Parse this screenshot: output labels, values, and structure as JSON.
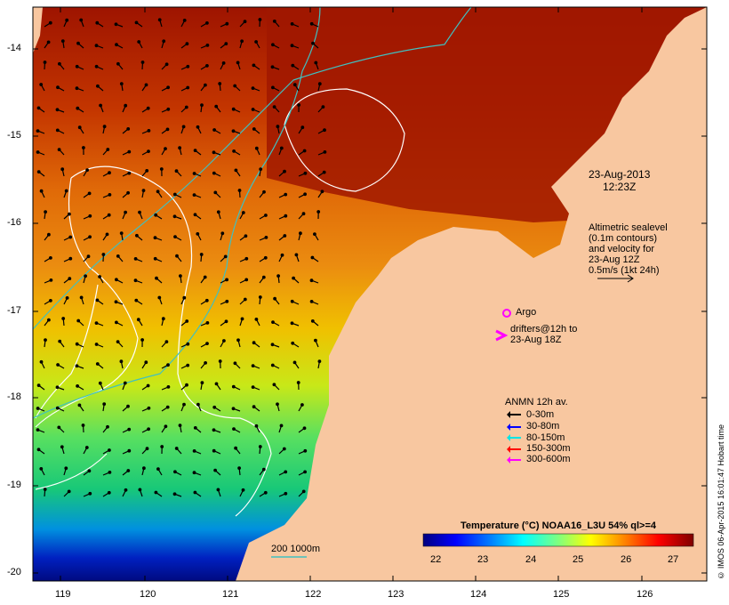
{
  "map": {
    "lat_ticks": [
      "-14",
      "-15",
      "-16",
      "-17",
      "-18",
      "-19",
      "-20"
    ],
    "lon_ticks": [
      "119",
      "120",
      "121",
      "122",
      "123",
      "124",
      "125",
      "126"
    ],
    "date_line1": "23-Aug-2013",
    "date_line2": "12:23Z",
    "altimetry": [
      "Altimetric sealevel",
      "(0.1m contours)",
      "and velocity for",
      "23-Aug 12Z",
      "0.5m/s (1kt 24h)"
    ],
    "argo_label": "Argo",
    "drifters": [
      "drifters@12h to",
      "23-Aug 18Z"
    ],
    "anmn_title": "ANMN 12h av.",
    "anmn_items": [
      {
        "label": "0-30m",
        "color": "#000000"
      },
      {
        "label": "30-80m",
        "color": "#0000ff"
      },
      {
        "label": "80-150m",
        "color": "#00e5e5"
      },
      {
        "label": "150-300m",
        "color": "#ff0000"
      },
      {
        "label": "300-600m",
        "color": "#ff00ff"
      }
    ],
    "depth_label": "200  1000m",
    "colorbar_title": "Temperature (°C) NOAA16_L3U 54% ql>=4",
    "colorbar_ticks": [
      "22",
      "23",
      "24",
      "25",
      "26",
      "27"
    ],
    "colorbar_colors": [
      "#00007f",
      "#0000ff",
      "#007fff",
      "#00ffff",
      "#7fff7f",
      "#ffff00",
      "#ff7f00",
      "#ff0000",
      "#7f0000"
    ],
    "credit": "© IMOS 06-Apr-2015 16:01:47 Hobart time",
    "colors": {
      "land": "#f8c7a0",
      "argo": "#ff00ff",
      "contour": "#ffffff",
      "isobath": "#40c0c0"
    }
  }
}
